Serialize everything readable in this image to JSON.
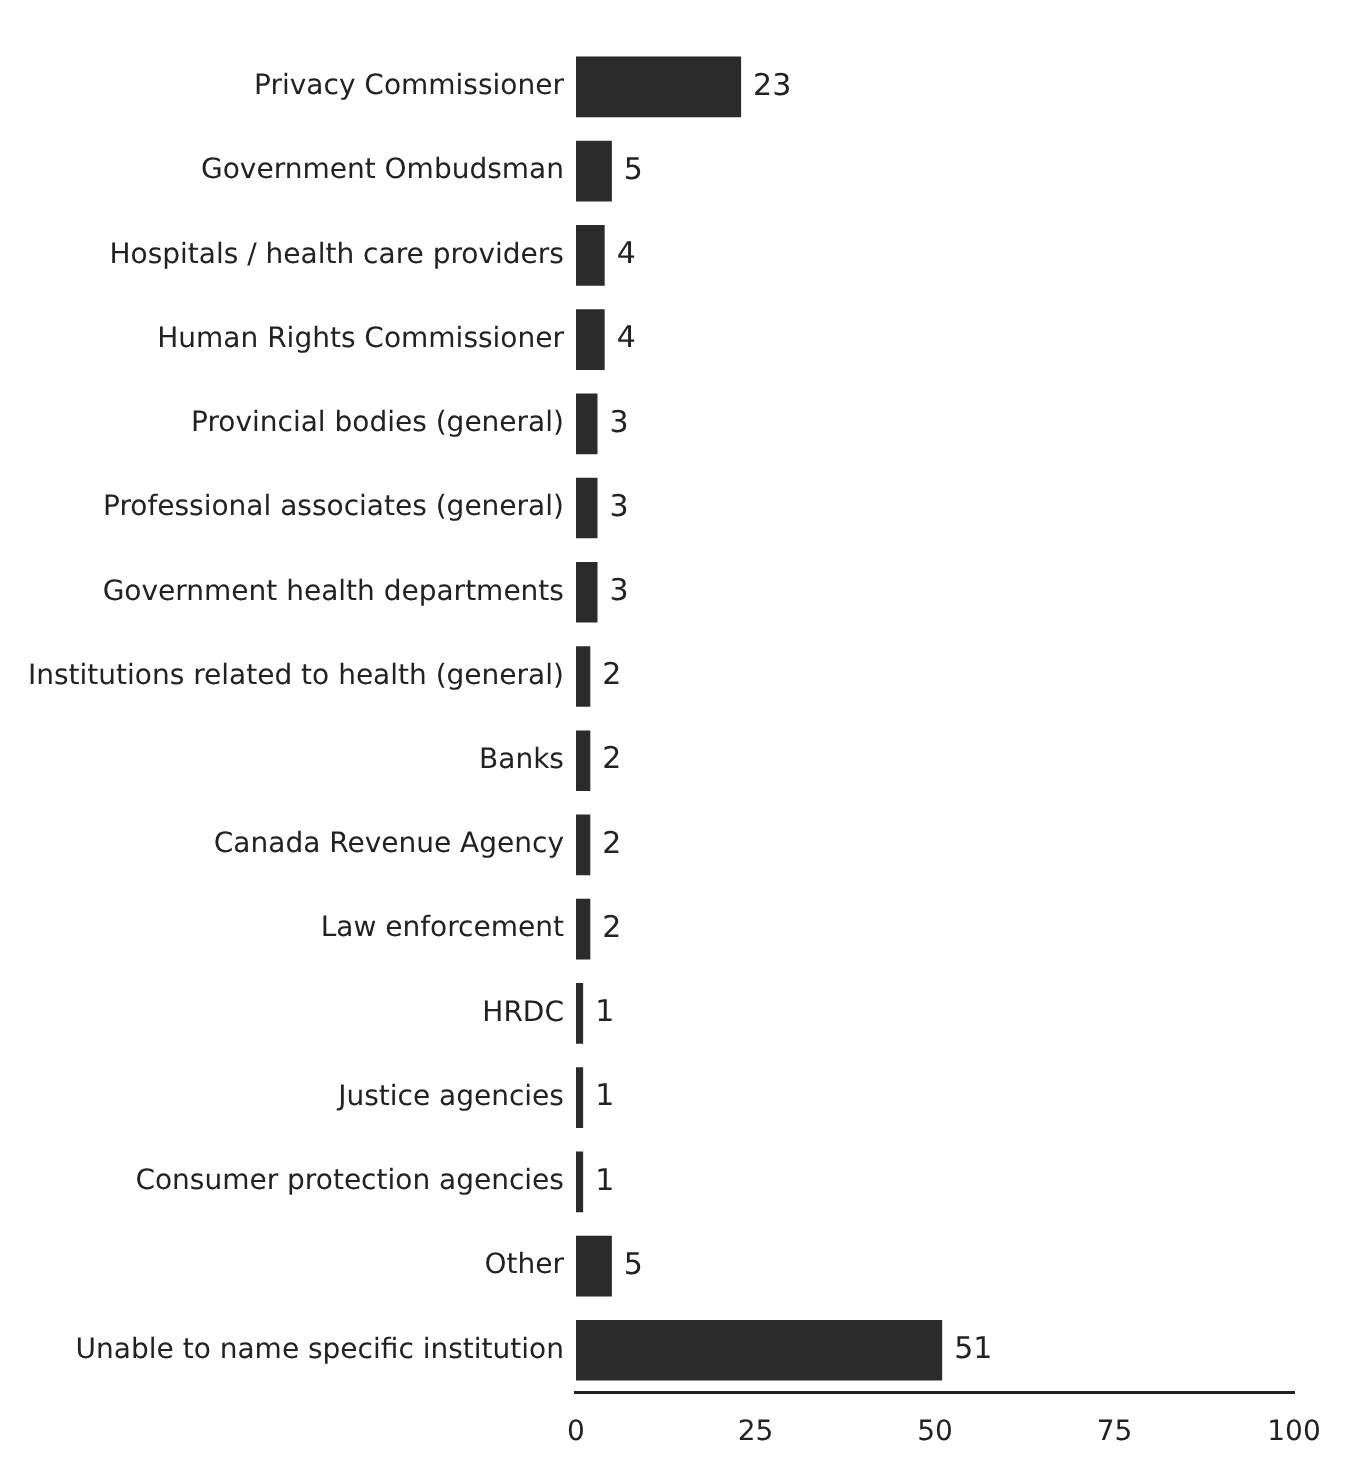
{
  "chart_data": {
    "type": "bar",
    "orientation": "horizontal",
    "categories": [
      "Privacy Commissioner",
      "Government Ombudsman",
      "Hospitals / health care providers",
      "Human Rights Commissioner",
      "Provincial bodies (general)",
      "Professional associates (general)",
      "Government health departments",
      "Institutions related to health (general)",
      "Banks",
      "Canada Revenue Agency",
      "Law enforcement",
      "HRDC",
      "Justice agencies",
      "Consumer protection agencies",
      "Other",
      "Unable to name specific institution"
    ],
    "values": [
      23,
      5,
      4,
      4,
      3,
      3,
      3,
      2,
      2,
      2,
      2,
      1,
      1,
      1,
      5,
      51
    ],
    "color": "#2b2b2b",
    "xlim": [
      0,
      100
    ],
    "xticks": [
      0,
      25,
      50,
      75,
      100
    ],
    "grid": false,
    "legend": false,
    "data_labels": true
  }
}
